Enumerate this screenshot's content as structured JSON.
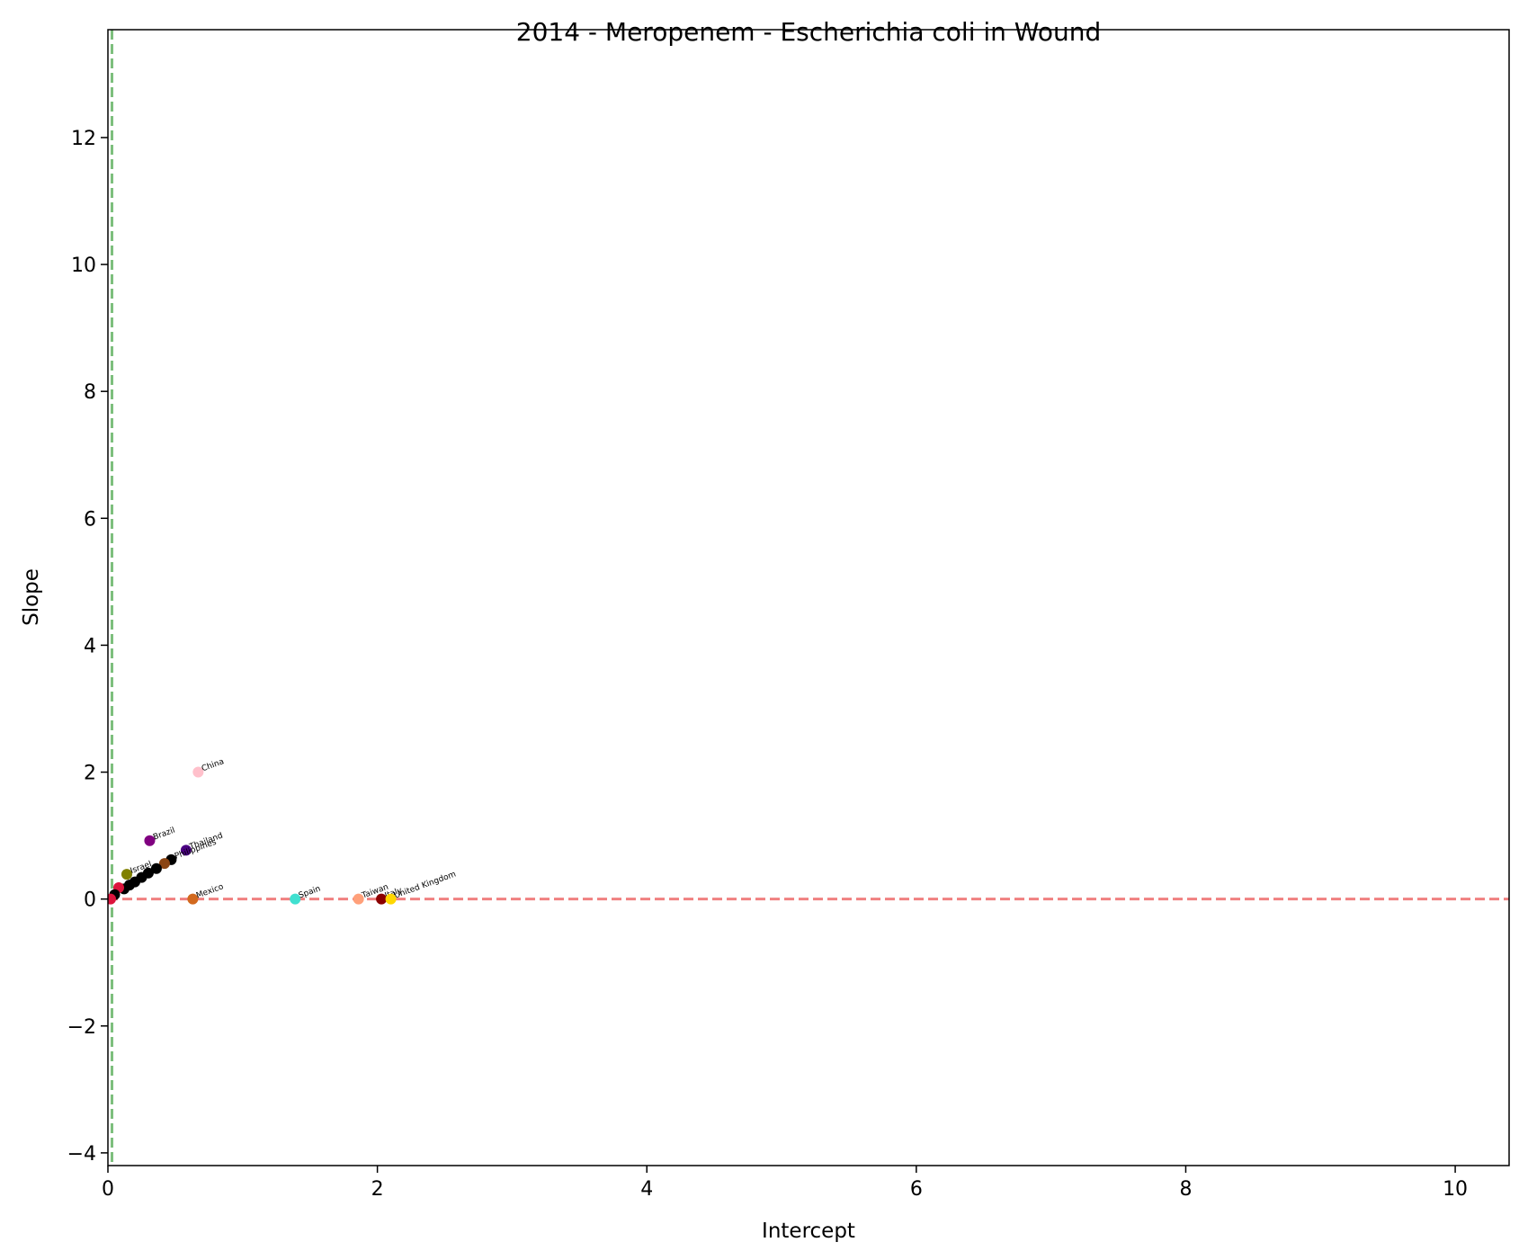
{
  "chart_data": {
    "type": "scatter",
    "title": "2014 - Meropenem - Escherichia coli in Wound",
    "xlabel": "Intercept",
    "ylabel": "Slope",
    "xlim": [
      0,
      10.4
    ],
    "ylim": [
      -4.2,
      13.7
    ],
    "xticks": [
      0,
      2,
      4,
      6,
      8,
      10
    ],
    "yticks": [
      -4,
      -2,
      0,
      2,
      4,
      6,
      8,
      10,
      12
    ],
    "xtick_labels": [
      "0",
      "2",
      "4",
      "6",
      "8",
      "10"
    ],
    "ytick_labels": [
      "−4",
      "−2",
      "0",
      "2",
      "4",
      "6",
      "8",
      "10",
      "12"
    ],
    "grid": false,
    "reference_lines": [
      {
        "orientation": "horizontal",
        "value": 0,
        "color": "#f08080",
        "style": "dashed"
      },
      {
        "orientation": "vertical",
        "value": 0.03,
        "color": "#7dbf7d",
        "style": "dashed"
      }
    ],
    "points": [
      {
        "label": "China",
        "x": 0.67,
        "y": 2.0,
        "color": "#ffc0cb"
      },
      {
        "label": "Brazil",
        "x": 0.31,
        "y": 0.92,
        "color": "#800080"
      },
      {
        "label": "Thailand",
        "x": 0.58,
        "y": 0.77,
        "color": "#4b0082"
      },
      {
        "label": "Philippines",
        "x": 0.47,
        "y": 0.62,
        "color": "#000000"
      },
      {
        "label": "Israel",
        "x": 0.14,
        "y": 0.39,
        "color": "#808000"
      },
      {
        "label": "",
        "x": 0.42,
        "y": 0.56,
        "color": "#8b4513"
      },
      {
        "label": "",
        "x": 0.36,
        "y": 0.48,
        "color": "#000000"
      },
      {
        "label": "",
        "x": 0.3,
        "y": 0.41,
        "color": "#000000"
      },
      {
        "label": "",
        "x": 0.25,
        "y": 0.34,
        "color": "#000000"
      },
      {
        "label": "",
        "x": 0.2,
        "y": 0.27,
        "color": "#000000"
      },
      {
        "label": "",
        "x": 0.16,
        "y": 0.22,
        "color": "#000000"
      },
      {
        "label": "",
        "x": 0.12,
        "y": 0.16,
        "color": "#000000"
      },
      {
        "label": "",
        "x": 0.08,
        "y": 0.18,
        "color": "#dc143c"
      },
      {
        "label": "",
        "x": 0.05,
        "y": 0.07,
        "color": "#000000"
      },
      {
        "label": "",
        "x": 0.02,
        "y": 0.0,
        "color": "#dc143c"
      },
      {
        "label": "Mexico",
        "x": 0.63,
        "y": 0.0,
        "color": "#d2691e"
      },
      {
        "label": "Spain",
        "x": 1.39,
        "y": 0.0,
        "color": "#40e0d0"
      },
      {
        "label": "Taiwan",
        "x": 1.86,
        "y": 0.0,
        "color": "#ffa07a"
      },
      {
        "label": "Italy",
        "x": 2.03,
        "y": 0.0,
        "color": "#8b0000"
      },
      {
        "label": "United Kingdom",
        "x": 2.1,
        "y": 0.0,
        "color": "#ffd700"
      }
    ]
  }
}
